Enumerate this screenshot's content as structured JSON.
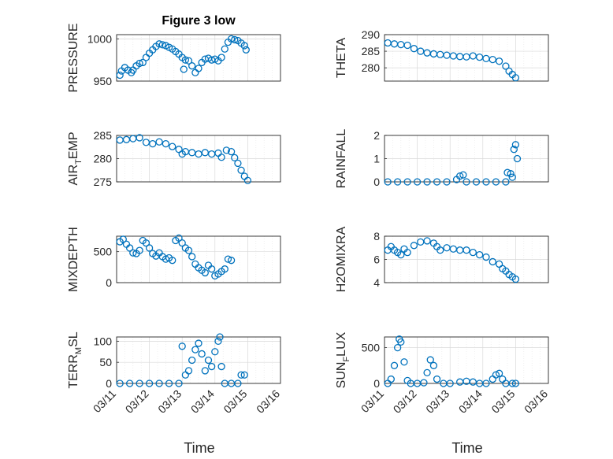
{
  "chart_data": {
    "type": "scatter",
    "title": "Figure 3 low",
    "xlabel": "Time",
    "x_ticks": [
      "03/11",
      "03/12",
      "03/13",
      "03/14",
      "03/15",
      "03/16"
    ],
    "x_range_days": [
      11,
      16
    ],
    "color": "#0072bd",
    "grid": true,
    "panels": [
      {
        "id": "pressure",
        "ylabel": "PRESSURE",
        "ylim": [
          950,
          1005
        ],
        "yticks": [
          950,
          1000
        ],
        "points": [
          [
            11.1,
            957
          ],
          [
            11.15,
            962
          ],
          [
            11.25,
            966
          ],
          [
            11.35,
            963
          ],
          [
            11.45,
            960
          ],
          [
            11.5,
            963
          ],
          [
            11.6,
            968
          ],
          [
            11.7,
            971
          ],
          [
            11.8,
            972
          ],
          [
            11.9,
            978
          ],
          [
            12.0,
            983
          ],
          [
            12.1,
            987
          ],
          [
            12.2,
            991
          ],
          [
            12.3,
            994
          ],
          [
            12.4,
            993
          ],
          [
            12.5,
            992
          ],
          [
            12.6,
            990
          ],
          [
            12.7,
            988
          ],
          [
            12.8,
            985
          ],
          [
            12.9,
            982
          ],
          [
            13.0,
            978
          ],
          [
            13.05,
            964
          ],
          [
            13.1,
            975
          ],
          [
            13.2,
            974
          ],
          [
            13.3,
            968
          ],
          [
            13.4,
            960
          ],
          [
            13.5,
            965
          ],
          [
            13.6,
            972
          ],
          [
            13.7,
            976
          ],
          [
            13.8,
            977
          ],
          [
            13.9,
            975
          ],
          [
            14.0,
            976
          ],
          [
            14.1,
            974
          ],
          [
            14.2,
            978
          ],
          [
            14.3,
            988
          ],
          [
            14.4,
            996
          ],
          [
            14.5,
            1000
          ],
          [
            14.6,
            999
          ],
          [
            14.7,
            998
          ],
          [
            14.8,
            995
          ],
          [
            14.9,
            992
          ],
          [
            14.95,
            987
          ]
        ]
      },
      {
        "id": "theta",
        "ylabel": "THETA",
        "ylim": [
          276,
          290
        ],
        "yticks": [
          280,
          285,
          290
        ],
        "points": [
          [
            11.1,
            287.5
          ],
          [
            11.3,
            287.2
          ],
          [
            11.5,
            287
          ],
          [
            11.7,
            286.8
          ],
          [
            11.9,
            285.8
          ],
          [
            12.1,
            285
          ],
          [
            12.3,
            284.5
          ],
          [
            12.5,
            284.2
          ],
          [
            12.7,
            284
          ],
          [
            12.9,
            283.8
          ],
          [
            13.1,
            283.6
          ],
          [
            13.3,
            283.4
          ],
          [
            13.5,
            283.3
          ],
          [
            13.7,
            283.6
          ],
          [
            13.9,
            283.2
          ],
          [
            14.1,
            282.8
          ],
          [
            14.3,
            282.5
          ],
          [
            14.5,
            282
          ],
          [
            14.7,
            280.5
          ],
          [
            14.8,
            279
          ],
          [
            14.9,
            278
          ],
          [
            15.0,
            277
          ]
        ]
      },
      {
        "id": "air_temp",
        "ylabel": "AIR_TEMP",
        "ylim": [
          275,
          285
        ],
        "yticks": [
          275,
          280,
          285
        ],
        "points": [
          [
            11.1,
            284
          ],
          [
            11.3,
            284.1
          ],
          [
            11.5,
            284.3
          ],
          [
            11.7,
            284.5
          ],
          [
            11.9,
            283.5
          ],
          [
            12.1,
            283.2
          ],
          [
            12.3,
            283.6
          ],
          [
            12.5,
            283.2
          ],
          [
            12.7,
            282.6
          ],
          [
            12.9,
            282
          ],
          [
            13.0,
            281
          ],
          [
            13.1,
            281.5
          ],
          [
            13.3,
            281.3
          ],
          [
            13.5,
            281
          ],
          [
            13.7,
            281.3
          ],
          [
            13.9,
            281
          ],
          [
            14.1,
            281.2
          ],
          [
            14.2,
            280.3
          ],
          [
            14.35,
            281.8
          ],
          [
            14.5,
            281.5
          ],
          [
            14.6,
            280.2
          ],
          [
            14.7,
            279
          ],
          [
            14.8,
            277.5
          ],
          [
            14.9,
            276.2
          ],
          [
            15.0,
            275.3
          ]
        ]
      },
      {
        "id": "rainfall",
        "ylabel": "RAINFALL",
        "ylim": [
          0,
          2
        ],
        "yticks": [
          0,
          1,
          2
        ],
        "points": [
          [
            11.1,
            0
          ],
          [
            11.4,
            0
          ],
          [
            11.7,
            0
          ],
          [
            12.0,
            0
          ],
          [
            12.3,
            0
          ],
          [
            12.6,
            0
          ],
          [
            12.9,
            0
          ],
          [
            13.2,
            0.1
          ],
          [
            13.3,
            0.25
          ],
          [
            13.4,
            0.3
          ],
          [
            13.5,
            0
          ],
          [
            13.8,
            0
          ],
          [
            14.1,
            0
          ],
          [
            14.4,
            0
          ],
          [
            14.7,
            0
          ],
          [
            14.75,
            0.4
          ],
          [
            14.85,
            0.35
          ],
          [
            14.9,
            0.2
          ],
          [
            14.95,
            1.4
          ],
          [
            15.0,
            1.6
          ],
          [
            15.05,
            1.0
          ]
        ]
      },
      {
        "id": "mixdepth",
        "ylabel": "MIXDEPTH",
        "ylim": [
          0,
          750
        ],
        "yticks": [
          0,
          500
        ],
        "points": [
          [
            11.1,
            660
          ],
          [
            11.2,
            700
          ],
          [
            11.3,
            620
          ],
          [
            11.4,
            560
          ],
          [
            11.5,
            480
          ],
          [
            11.6,
            470
          ],
          [
            11.7,
            520
          ],
          [
            11.8,
            680
          ],
          [
            11.9,
            640
          ],
          [
            12.0,
            560
          ],
          [
            12.1,
            470
          ],
          [
            12.2,
            430
          ],
          [
            12.3,
            480
          ],
          [
            12.4,
            420
          ],
          [
            12.5,
            380
          ],
          [
            12.6,
            400
          ],
          [
            12.7,
            360
          ],
          [
            12.8,
            680
          ],
          [
            12.9,
            720
          ],
          [
            13.0,
            640
          ],
          [
            13.1,
            560
          ],
          [
            13.2,
            520
          ],
          [
            13.3,
            420
          ],
          [
            13.4,
            300
          ],
          [
            13.5,
            240
          ],
          [
            13.6,
            200
          ],
          [
            13.7,
            160
          ],
          [
            13.8,
            280
          ],
          [
            13.9,
            220
          ],
          [
            14.0,
            110
          ],
          [
            14.1,
            140
          ],
          [
            14.2,
            180
          ],
          [
            14.3,
            220
          ],
          [
            14.4,
            380
          ],
          [
            14.5,
            360
          ]
        ]
      },
      {
        "id": "h2omixra",
        "ylabel": "H2OMIXRA",
        "ylim": [
          4,
          8
        ],
        "yticks": [
          4,
          6,
          8
        ],
        "points": [
          [
            11.1,
            6.8
          ],
          [
            11.2,
            7.1
          ],
          [
            11.3,
            6.8
          ],
          [
            11.4,
            6.6
          ],
          [
            11.5,
            6.4
          ],
          [
            11.6,
            6.9
          ],
          [
            11.7,
            6.6
          ],
          [
            11.9,
            7.2
          ],
          [
            12.1,
            7.5
          ],
          [
            12.3,
            7.6
          ],
          [
            12.5,
            7.4
          ],
          [
            12.6,
            7.1
          ],
          [
            12.7,
            6.8
          ],
          [
            12.9,
            7.0
          ],
          [
            13.1,
            6.9
          ],
          [
            13.3,
            6.8
          ],
          [
            13.5,
            6.8
          ],
          [
            13.7,
            6.6
          ],
          [
            13.9,
            6.4
          ],
          [
            14.1,
            6.2
          ],
          [
            14.3,
            5.8
          ],
          [
            14.5,
            5.6
          ],
          [
            14.6,
            5.2
          ],
          [
            14.7,
            5.0
          ],
          [
            14.8,
            4.7
          ],
          [
            14.9,
            4.5
          ],
          [
            15.0,
            4.3
          ]
        ]
      },
      {
        "id": "terr_msl",
        "ylabel": "TERR_MSL",
        "ylim": [
          0,
          110
        ],
        "yticks": [
          0,
          50,
          100
        ],
        "points": [
          [
            11.1,
            0
          ],
          [
            11.4,
            0
          ],
          [
            11.7,
            0
          ],
          [
            12.0,
            0
          ],
          [
            12.3,
            0
          ],
          [
            12.6,
            0
          ],
          [
            12.9,
            0
          ],
          [
            13.0,
            88
          ],
          [
            13.1,
            20
          ],
          [
            13.2,
            30
          ],
          [
            13.3,
            55
          ],
          [
            13.4,
            80
          ],
          [
            13.5,
            95
          ],
          [
            13.6,
            70
          ],
          [
            13.7,
            30
          ],
          [
            13.8,
            55
          ],
          [
            13.9,
            40
          ],
          [
            14.0,
            75
          ],
          [
            14.1,
            100
          ],
          [
            14.15,
            110
          ],
          [
            14.2,
            40
          ],
          [
            14.3,
            0
          ],
          [
            14.5,
            0
          ],
          [
            14.7,
            0
          ],
          [
            14.8,
            20
          ],
          [
            14.9,
            20
          ]
        ]
      },
      {
        "id": "sun_flux",
        "ylabel": "SUN_FLUX",
        "ylim": [
          0,
          650
        ],
        "yticks": [
          0,
          500
        ],
        "points": [
          [
            11.1,
            0
          ],
          [
            11.2,
            60
          ],
          [
            11.3,
            250
          ],
          [
            11.4,
            500
          ],
          [
            11.45,
            620
          ],
          [
            11.5,
            580
          ],
          [
            11.6,
            300
          ],
          [
            11.7,
            40
          ],
          [
            11.8,
            0
          ],
          [
            12.0,
            0
          ],
          [
            12.2,
            10
          ],
          [
            12.3,
            150
          ],
          [
            12.4,
            330
          ],
          [
            12.5,
            250
          ],
          [
            12.6,
            60
          ],
          [
            12.8,
            0
          ],
          [
            13.0,
            0
          ],
          [
            13.3,
            20
          ],
          [
            13.5,
            30
          ],
          [
            13.7,
            20
          ],
          [
            13.9,
            0
          ],
          [
            14.1,
            0
          ],
          [
            14.3,
            60
          ],
          [
            14.4,
            120
          ],
          [
            14.5,
            140
          ],
          [
            14.6,
            60
          ],
          [
            14.7,
            0
          ],
          [
            14.9,
            0
          ],
          [
            15.0,
            0
          ]
        ]
      }
    ]
  }
}
